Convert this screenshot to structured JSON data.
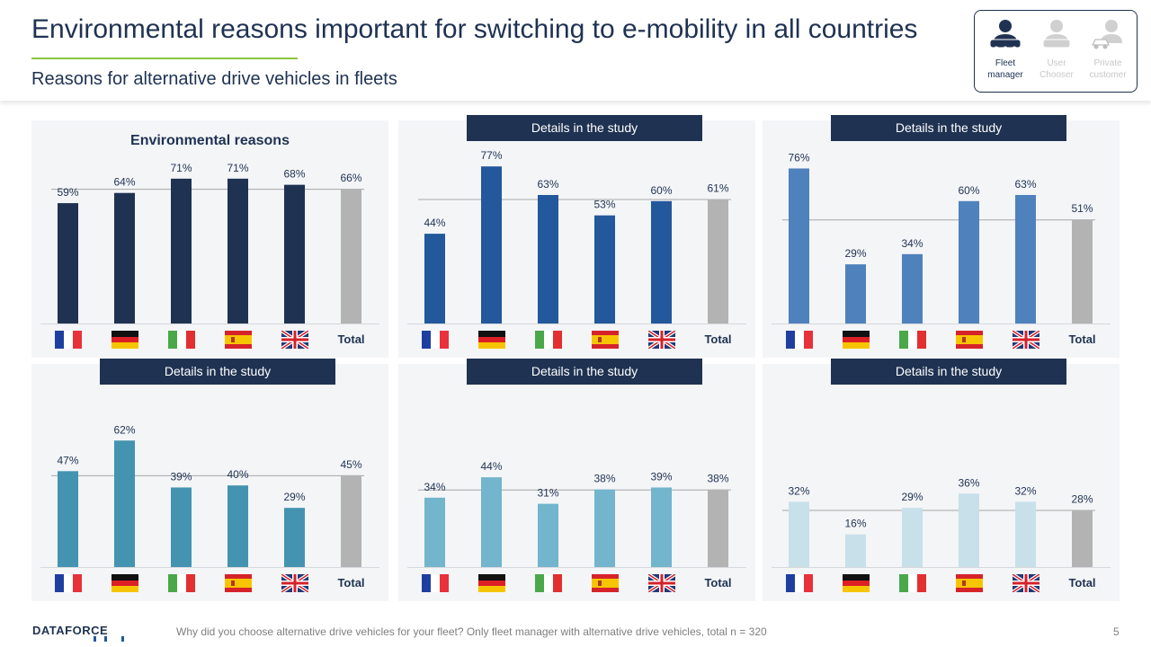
{
  "header": {
    "title": "Environmental reasons important for switching to e-mobility in all countries",
    "subtitle": "Reasons for alternative drive vehicles in fleets"
  },
  "personas": [
    {
      "label": "Fleet manager",
      "active": true,
      "icon": "fleet-manager-icon"
    },
    {
      "label": "User Chooser",
      "active": false,
      "icon": "user-chooser-icon"
    },
    {
      "label": "Private customer",
      "active": false,
      "icon": "private-customer-icon"
    }
  ],
  "chart_data": [
    {
      "type": "bar",
      "title": "Environmental reasons",
      "categories": [
        "France",
        "Germany",
        "Italy",
        "Spain",
        "United Kingdom",
        "Total"
      ],
      "values": [
        59,
        64,
        71,
        71,
        68,
        66
      ],
      "labels": [
        "59%",
        "64%",
        "71%",
        "71%",
        "68%",
        "66%"
      ],
      "reference_value": 66,
      "color": "#1f3252",
      "total_color": "#b3b3b3",
      "ylim": [
        0,
        80
      ]
    },
    {
      "type": "bar",
      "tag": "Details in the study",
      "categories": [
        "France",
        "Germany",
        "Italy",
        "Spain",
        "United Kingdom",
        "Total"
      ],
      "values": [
        44,
        77,
        63,
        53,
        60,
        61
      ],
      "labels": [
        "44%",
        "77%",
        "63%",
        "53%",
        "60%",
        "61%"
      ],
      "reference_value": 61,
      "color": "#23589c",
      "total_color": "#b3b3b3",
      "ylim": [
        0,
        80
      ]
    },
    {
      "type": "bar",
      "tag": "Details in the study",
      "categories": [
        "France",
        "Germany",
        "Italy",
        "Spain",
        "United Kingdom",
        "Total"
      ],
      "values": [
        76,
        29,
        34,
        60,
        63,
        51
      ],
      "labels": [
        "76%",
        "29%",
        "34%",
        "60%",
        "63%",
        "51%"
      ],
      "reference_value": 51,
      "color": "#4f81bd",
      "total_color": "#b3b3b3",
      "ylim": [
        0,
        80
      ]
    },
    {
      "type": "bar",
      "tag": "Details in the study",
      "categories": [
        "France",
        "Germany",
        "Italy",
        "Spain",
        "United Kingdom",
        "Total"
      ],
      "values": [
        47,
        62,
        39,
        40,
        29,
        45
      ],
      "labels": [
        "47%",
        "62%",
        "39%",
        "40%",
        "29%",
        "45%"
      ],
      "reference_value": 45,
      "color": "#4493b0",
      "total_color": "#b3b3b3",
      "ylim": [
        0,
        80
      ]
    },
    {
      "type": "bar",
      "tag": "Details in the study",
      "categories": [
        "France",
        "Germany",
        "Italy",
        "Spain",
        "United Kingdom",
        "Total"
      ],
      "values": [
        34,
        44,
        31,
        38,
        39,
        38
      ],
      "labels": [
        "34%",
        "44%",
        "31%",
        "38%",
        "39%",
        "38%"
      ],
      "reference_value": 38,
      "color": "#72b5cc",
      "total_color": "#b3b3b3",
      "ylim": [
        0,
        80
      ]
    },
    {
      "type": "bar",
      "tag": "Details in the study",
      "categories": [
        "France",
        "Germany",
        "Italy",
        "Spain",
        "United Kingdom",
        "Total"
      ],
      "values": [
        32,
        16,
        29,
        36,
        32,
        28
      ],
      "labels": [
        "32%",
        "16%",
        "29%",
        "36%",
        "32%",
        "28%"
      ],
      "reference_value": 28,
      "color": "#c8e0ea",
      "total_color": "#b3b3b3",
      "ylim": [
        0,
        80
      ]
    }
  ],
  "total_label": "Total",
  "footer": {
    "logo": "DATAFORCE",
    "note": "Why did you choose alternative drive vehicles for your fleet? Only fleet manager with alternative drive vehicles, total n = 320",
    "page": "5"
  }
}
